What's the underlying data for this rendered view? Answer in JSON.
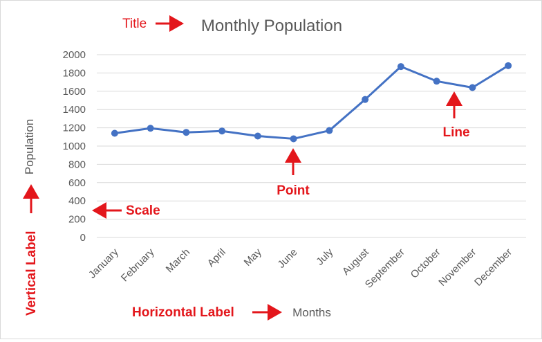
{
  "chart_data": {
    "type": "line",
    "title": "Monthly Population",
    "xlabel": "Months",
    "ylabel": "Population",
    "categories": [
      "January",
      "February",
      "March",
      "April",
      "May",
      "June",
      "July",
      "August",
      "September",
      "October",
      "November",
      "December"
    ],
    "series": [
      {
        "values": [
          1140,
          1195,
          1150,
          1165,
          1110,
          1080,
          1170,
          1510,
          1870,
          1710,
          1640,
          1880
        ]
      }
    ],
    "ylim": [
      0,
      2000
    ],
    "yticks": [
      0,
      200,
      400,
      600,
      800,
      1000,
      1200,
      1400,
      1600,
      1800,
      2000
    ],
    "grid": true,
    "line_color": "#4472c4",
    "grid_color": "#d9d9d9"
  },
  "annotations": {
    "title": "Title",
    "point": "Point",
    "line": "Line",
    "scale": "Scale",
    "vertical_label": "Vertical Label",
    "horizontal_label": "Horizontal Label",
    "color": "#e3161b"
  }
}
